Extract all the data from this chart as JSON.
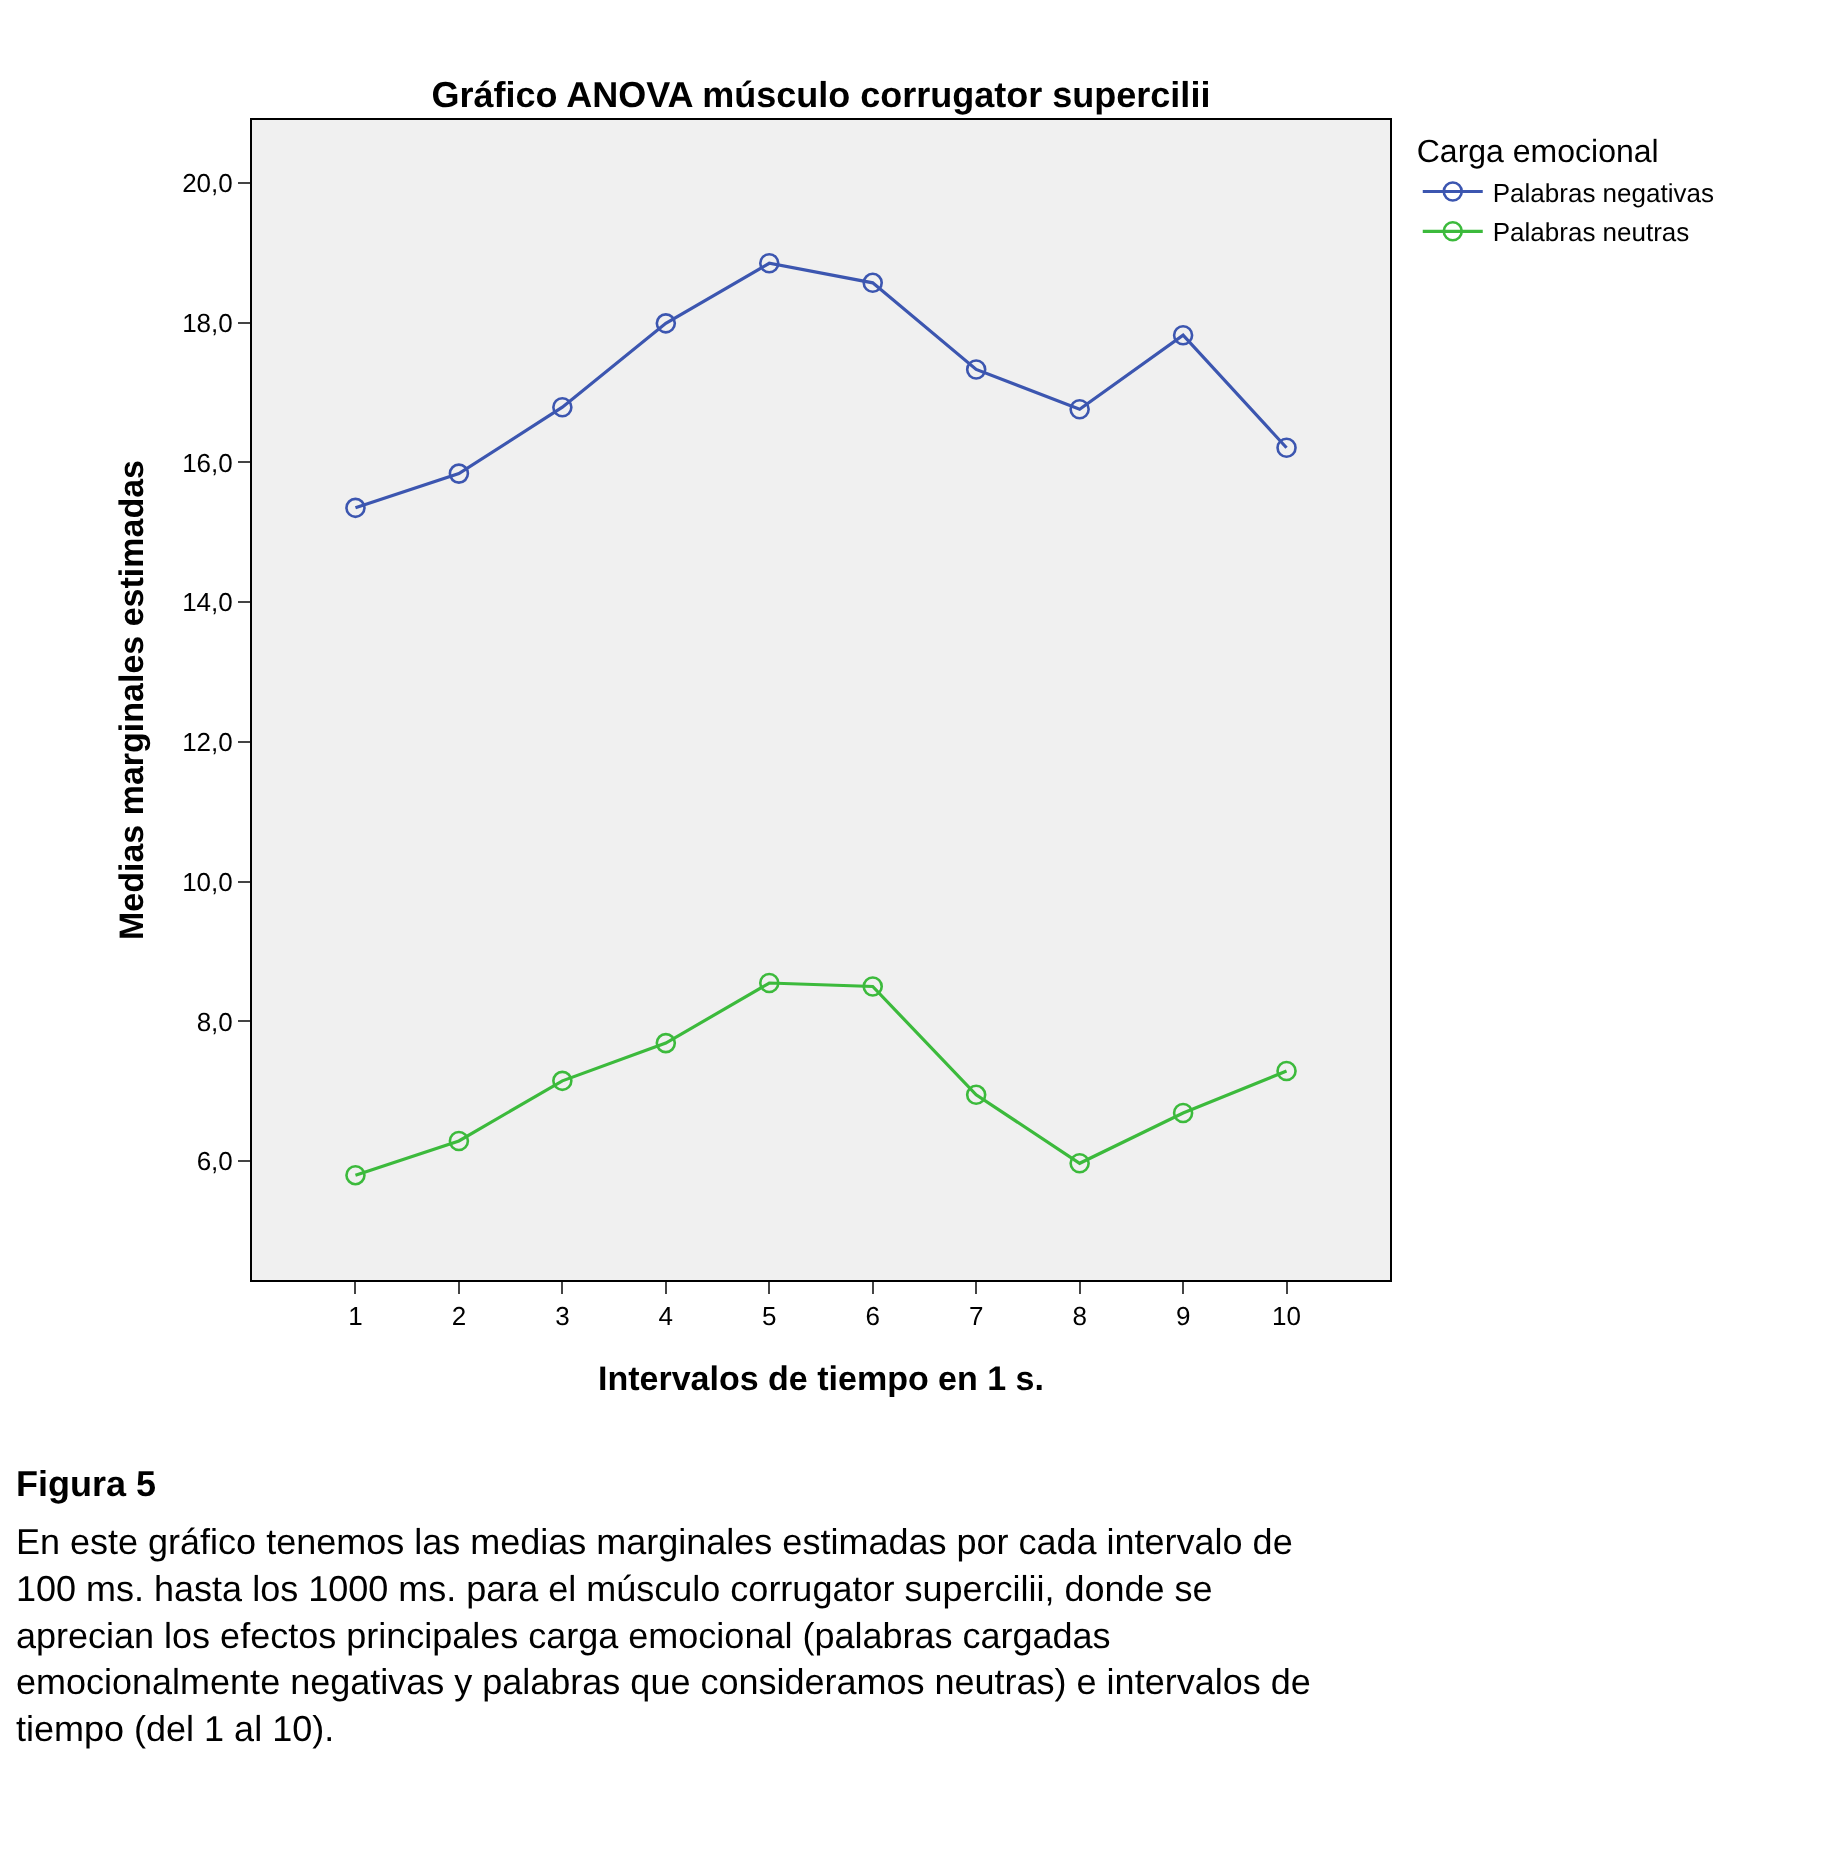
{
  "chart_data": {
    "type": "line",
    "title": "Gráfico ANOVA músculo corrugator supercilii",
    "xlabel": "Intervalos de tiempo en 1 s.",
    "ylabel": "Medias marginales estimadas",
    "legend_title": "Carga emocional",
    "x": [
      1,
      2,
      3,
      4,
      5,
      6,
      7,
      8,
      9,
      10
    ],
    "series": [
      {
        "name": "Palabras negativas",
        "color": "#3c56b0",
        "values": [
          15.35,
          15.84,
          16.79,
          17.99,
          18.85,
          18.57,
          17.33,
          16.76,
          17.82,
          16.21
        ]
      },
      {
        "name": "Palabras neutras",
        "color": "#3cba3c",
        "values": [
          5.8,
          6.29,
          7.15,
          7.69,
          8.55,
          8.5,
          6.95,
          5.97,
          6.69,
          7.29
        ]
      }
    ],
    "xlim": [
      0,
      11
    ],
    "xticks": [
      1,
      2,
      3,
      4,
      5,
      6,
      7,
      8,
      9,
      10
    ],
    "ylim": [
      4.3,
      20.9
    ],
    "yticks": [
      {
        "value": 6,
        "label": "6,0"
      },
      {
        "value": 8,
        "label": "8,0"
      },
      {
        "value": 10,
        "label": "10,0"
      },
      {
        "value": 12,
        "label": "12,0"
      },
      {
        "value": 14,
        "label": "14,0"
      },
      {
        "value": 16,
        "label": "16,0"
      },
      {
        "value": 18,
        "label": "18,0"
      },
      {
        "value": 20,
        "label": "20,0"
      }
    ],
    "grid": false,
    "legend": "top right",
    "marker": "circle",
    "line_style": "solid",
    "annotations": [
      "Figura 5",
      "En este gráfico tenemos las medias marginales estimadas por cada intervalo de 100 ms. hasta los 1000 ms. para el músculo corrugator supercilii, donde se aprecian los efectos principales carga emocional (palabras cargadas emocionalmente negativas y palabras que consideramos neutras) e intervalos de tiempo (del 1 al 10)."
    ]
  }
}
